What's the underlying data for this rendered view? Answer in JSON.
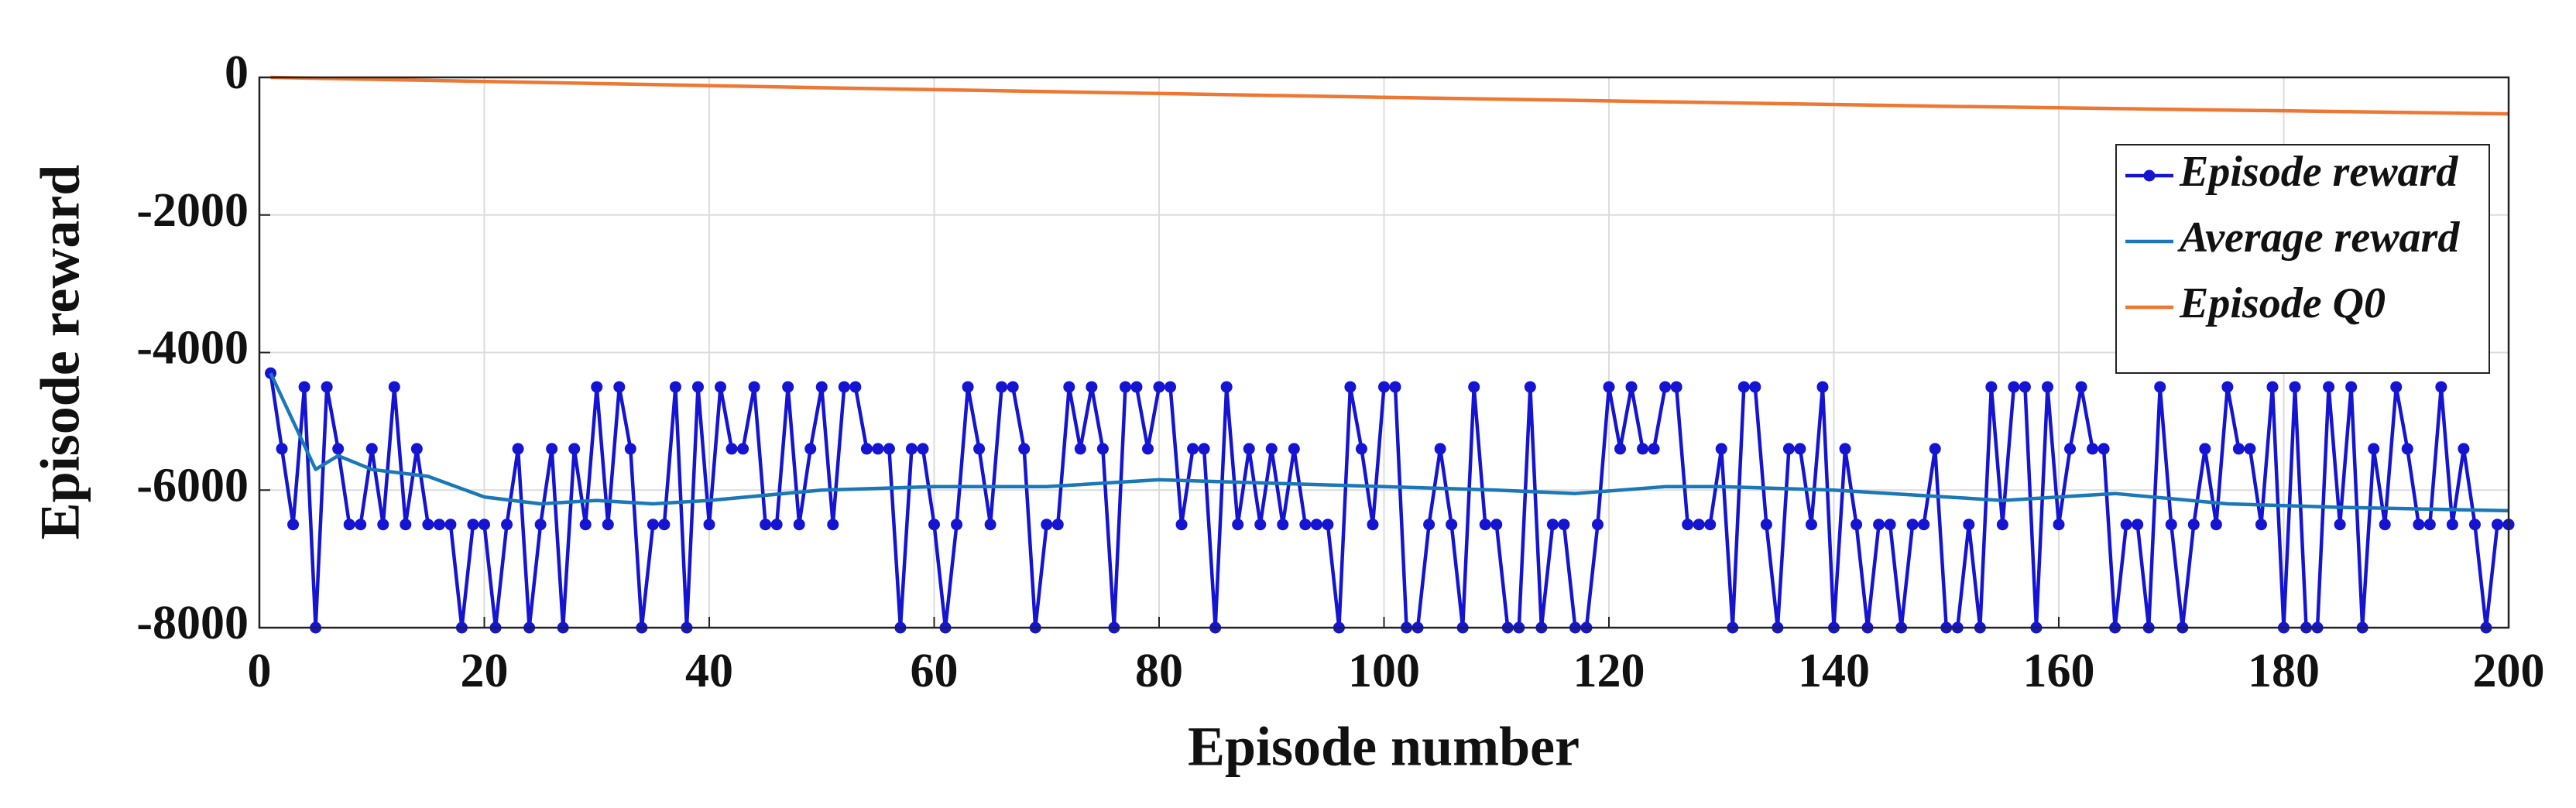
{
  "chart_data": {
    "type": "line",
    "xlabel": "Episode number",
    "ylabel": "Episode reward",
    "xlim": [
      0,
      200
    ],
    "xticks": [
      0,
      20,
      40,
      60,
      80,
      100,
      120,
      140,
      160,
      180,
      200
    ],
    "ylim": [
      -8000,
      0
    ],
    "yticks": [
      -8000,
      -6000,
      -4000,
      -2000,
      0
    ],
    "grid": true,
    "legend": "northeast",
    "series": [
      {
        "name": "Episode reward",
        "color": "#1414d2",
        "marker": true,
        "x": [
          1,
          2,
          3,
          4,
          5,
          6,
          7,
          8,
          9,
          10,
          11,
          12,
          13,
          14,
          15,
          16,
          17,
          18,
          19,
          20,
          21,
          22,
          23,
          24,
          25,
          26,
          27,
          28,
          29,
          30,
          31,
          32,
          33,
          34,
          35,
          36,
          37,
          38,
          39,
          40,
          41,
          42,
          43,
          44,
          45,
          46,
          47,
          48,
          49,
          50,
          51,
          52,
          53,
          54,
          55,
          56,
          57,
          58,
          59,
          60,
          61,
          62,
          63,
          64,
          65,
          66,
          67,
          68,
          69,
          70,
          71,
          72,
          73,
          74,
          75,
          76,
          77,
          78,
          79,
          80,
          81,
          82,
          83,
          84,
          85,
          86,
          87,
          88,
          89,
          90,
          91,
          92,
          93,
          94,
          95,
          96,
          97,
          98,
          99,
          100,
          101,
          102,
          103,
          104,
          105,
          106,
          107,
          108,
          109,
          110,
          111,
          112,
          113,
          114,
          115,
          116,
          117,
          118,
          119,
          120,
          121,
          122,
          123,
          124,
          125,
          126,
          127,
          128,
          129,
          130,
          131,
          132,
          133,
          134,
          135,
          136,
          137,
          138,
          139,
          140,
          141,
          142,
          143,
          144,
          145,
          146,
          147,
          148,
          149,
          150,
          151,
          152,
          153,
          154,
          155,
          156,
          157,
          158,
          159,
          160,
          161,
          162,
          163,
          164,
          165,
          166,
          167,
          168,
          169,
          170,
          171,
          172,
          173,
          174,
          175,
          176,
          177,
          178,
          179,
          180,
          181,
          182,
          183,
          184,
          185,
          186,
          187,
          188,
          189,
          190,
          191,
          192,
          193,
          194,
          195,
          196,
          197,
          198,
          199,
          200
        ],
        "values": [
          -4300,
          -5400,
          -6500,
          -4500,
          -8000,
          -4500,
          -5400,
          -6500,
          -6500,
          -5400,
          -6500,
          -4500,
          -6500,
          -5400,
          -6500,
          -6500,
          -6500,
          -8000,
          -6500,
          -6500,
          -8000,
          -6500,
          -5400,
          -8000,
          -6500,
          -5400,
          -8000,
          -5400,
          -6500,
          -4500,
          -6500,
          -4500,
          -5400,
          -8000,
          -6500,
          -6500,
          -4500,
          -8000,
          -4500,
          -6500,
          -4500,
          -5400,
          -5400,
          -4500,
          -6500,
          -6500,
          -4500,
          -6500,
          -5400,
          -4500,
          -6500,
          -4500,
          -4500,
          -5400,
          -5400,
          -5400,
          -8000,
          -5400,
          -5400,
          -6500,
          -8000,
          -6500,
          -4500,
          -5400,
          -6500,
          -4500,
          -4500,
          -5400,
          -8000,
          -6500,
          -6500,
          -4500,
          -5400,
          -4500,
          -5400,
          -8000,
          -4500,
          -4500,
          -5400,
          -4500,
          -4500,
          -6500,
          -5400,
          -5400,
          -8000,
          -4500,
          -6500,
          -5400,
          -6500,
          -5400,
          -6500,
          -5400,
          -6500,
          -6500,
          -6500,
          -8000,
          -4500,
          -5400,
          -6500,
          -4500,
          -4500,
          -8000,
          -8000,
          -6500,
          -5400,
          -6500,
          -8000,
          -4500,
          -6500,
          -6500,
          -8000,
          -8000,
          -4500,
          -8000,
          -6500,
          -6500,
          -8000,
          -8000,
          -6500,
          -4500,
          -5400,
          -4500,
          -5400,
          -5400,
          -4500,
          -4500,
          -6500,
          -6500,
          -6500,
          -5400,
          -8000,
          -4500,
          -4500,
          -6500,
          -8000,
          -5400,
          -5400,
          -6500,
          -4500,
          -8000,
          -5400,
          -6500,
          -8000,
          -6500,
          -6500,
          -8000,
          -6500,
          -6500,
          -5400,
          -8000,
          -8000,
          -6500,
          -8000,
          -4500,
          -6500,
          -4500,
          -4500,
          -8000,
          -4500,
          -6500,
          -5400,
          -4500,
          -5400,
          -5400,
          -8000,
          -6500,
          -6500,
          -8000,
          -4500,
          -6500,
          -8000,
          -6500,
          -5400,
          -6500,
          -4500,
          -5400,
          -5400,
          -6500,
          -4500,
          -8000,
          -4500,
          -8000,
          -8000,
          -4500,
          -6500,
          -4500,
          -8000,
          -5400,
          -6500,
          -4500,
          -5400,
          -6500,
          -6500,
          -4500,
          -6500,
          -5400,
          -6500,
          -8000,
          -6500,
          -6500
        ]
      },
      {
        "name": "Average reward",
        "color": "#1a78b8",
        "marker": false,
        "x": [
          1,
          3,
          5,
          7,
          10,
          15,
          20,
          25,
          30,
          35,
          40,
          50,
          60,
          70,
          80,
          90,
          100,
          110,
          117,
          125,
          130,
          140,
          150,
          155,
          165,
          175,
          185,
          200
        ],
        "values": [
          -4300,
          -5000,
          -5700,
          -5500,
          -5700,
          -5800,
          -6100,
          -6200,
          -6150,
          -6200,
          -6150,
          -6000,
          -5950,
          -5950,
          -5850,
          -5900,
          -5950,
          -6000,
          -6050,
          -5950,
          -5950,
          -6000,
          -6100,
          -6150,
          -6050,
          -6200,
          -6250,
          -6300
        ]
      },
      {
        "name": "Episode Q0",
        "color": "#ee7733",
        "marker": false,
        "x": [
          1,
          50,
          100,
          150,
          200
        ],
        "values": [
          0,
          -150,
          -290,
          -420,
          -530
        ]
      }
    ]
  }
}
